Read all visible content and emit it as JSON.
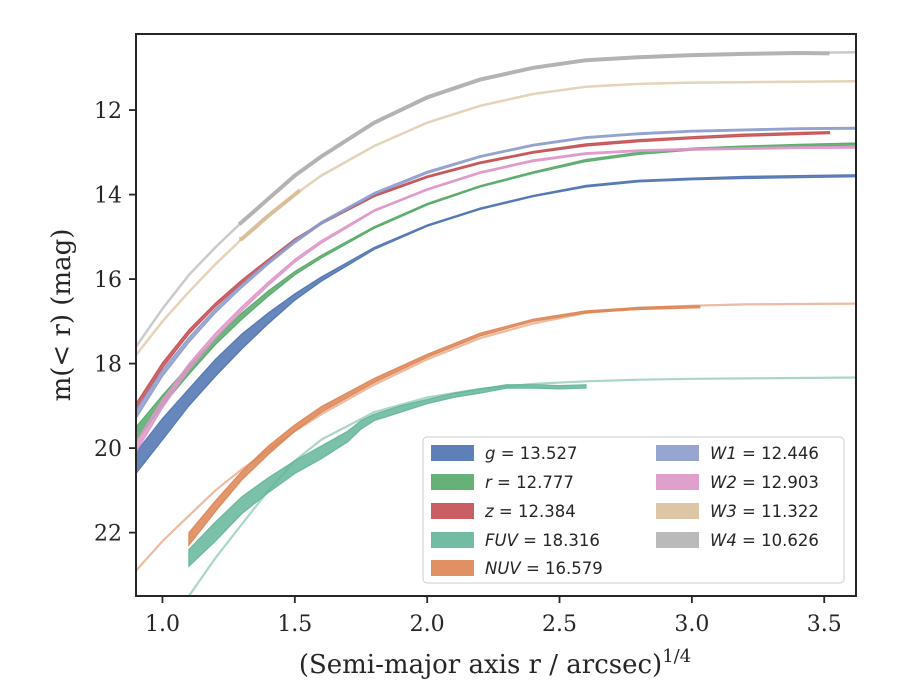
{
  "chart_data": {
    "type": "line",
    "xlabel": "(Semi-major axis r / arcsec)",
    "xlabel_sup": "1/4",
    "ylabel": "m(< r) (mag)",
    "xlim": [
      0.9,
      3.62
    ],
    "ylim": [
      23.5,
      10.2
    ],
    "y_inverted": true,
    "xticks": [
      1.0,
      1.5,
      2.0,
      2.5,
      3.0,
      3.5
    ],
    "xtick_labels": [
      "1.0",
      "1.5",
      "2.0",
      "2.5",
      "3.0",
      "3.5"
    ],
    "yticks": [
      12,
      14,
      16,
      18,
      20,
      22
    ],
    "ytick_labels": [
      "12",
      "14",
      "16",
      "18",
      "20",
      "22"
    ],
    "grid": false,
    "legend_position": "lower-right",
    "series": [
      {
        "name": "g",
        "legend": "g = 13.527",
        "color": "#4c72b0",
        "x": [
          0.9,
          1.0,
          1.1,
          1.2,
          1.3,
          1.4,
          1.5,
          1.6,
          1.8,
          2.0,
          2.2,
          2.4,
          2.6,
          2.8,
          3.0,
          3.2,
          3.4,
          3.62
        ],
        "y": [
          20.6,
          19.8,
          19.0,
          18.3,
          17.65,
          17.05,
          16.5,
          16.05,
          15.3,
          14.75,
          14.35,
          14.05,
          13.82,
          13.7,
          13.65,
          13.62,
          13.6,
          13.58
        ],
        "y_err_low": [
          20.1,
          19.3,
          18.6,
          17.9,
          17.3,
          16.8,
          16.35,
          15.95,
          15.25,
          14.72,
          14.32,
          14.02,
          13.78,
          13.66,
          13.61,
          13.57,
          13.55,
          13.53
        ],
        "widths_obs": [
          0.9,
          3.62
        ]
      },
      {
        "name": "r",
        "legend": "r = 12.777",
        "color": "#55a868",
        "x": [
          0.9,
          1.0,
          1.1,
          1.2,
          1.3,
          1.4,
          1.5,
          1.6,
          1.8,
          2.0,
          2.2,
          2.4,
          2.6,
          2.8,
          3.0,
          3.2,
          3.4,
          3.62
        ],
        "y": [
          19.85,
          19.0,
          18.25,
          17.55,
          16.95,
          16.4,
          15.9,
          15.5,
          14.8,
          14.25,
          13.82,
          13.5,
          13.22,
          13.05,
          12.95,
          12.9,
          12.86,
          12.83
        ],
        "y_err_low": [
          19.5,
          18.75,
          18.05,
          17.4,
          16.8,
          16.28,
          15.82,
          15.44,
          14.76,
          14.21,
          13.79,
          13.46,
          13.17,
          13.0,
          12.9,
          12.85,
          12.81,
          12.78
        ]
      },
      {
        "name": "z",
        "legend": "z = 12.384",
        "color": "#c44e52",
        "x": [
          0.9,
          1.0,
          1.1,
          1.2,
          1.3,
          1.4,
          1.5,
          1.6,
          1.8,
          2.0,
          2.2,
          2.4,
          2.6,
          2.8,
          3.0,
          3.2,
          3.4,
          3.52
        ],
        "y": [
          19.1,
          18.1,
          17.3,
          16.65,
          16.1,
          15.6,
          15.1,
          14.7,
          14.05,
          13.6,
          13.27,
          13.02,
          12.85,
          12.75,
          12.68,
          12.62,
          12.58,
          12.56
        ],
        "y_err_low": [
          18.95,
          17.98,
          17.2,
          16.57,
          16.02,
          15.53,
          15.05,
          14.66,
          14.01,
          13.56,
          13.23,
          12.98,
          12.8,
          12.7,
          12.63,
          12.57,
          12.53,
          12.51
        ]
      },
      {
        "name": "FUV",
        "legend": "FUV = 18.316",
        "color": "#64b59a",
        "x": [
          1.1,
          1.2,
          1.3,
          1.4,
          1.5,
          1.6,
          1.7,
          1.75,
          1.8,
          1.9,
          2.0,
          2.1,
          2.2,
          2.3,
          2.4,
          2.5,
          2.6
        ],
        "y": [
          22.8,
          22.2,
          21.55,
          21.05,
          20.6,
          20.25,
          19.85,
          19.55,
          19.35,
          19.15,
          18.95,
          18.8,
          18.7,
          18.58,
          18.58,
          18.6,
          18.58
        ],
        "y_err_low": [
          22.4,
          21.75,
          21.15,
          20.7,
          20.3,
          19.95,
          19.6,
          19.35,
          19.2,
          19.0,
          18.85,
          18.7,
          18.6,
          18.5,
          18.5,
          18.52,
          18.5
        ],
        "model_x": [
          0.9,
          1.0,
          1.1,
          1.2,
          1.3,
          1.4,
          1.5,
          1.6,
          1.8,
          2.0,
          2.2,
          2.4,
          2.6,
          2.8,
          3.0,
          3.2,
          3.4,
          3.62
        ],
        "model_y": [
          25.2,
          24.4,
          23.5,
          22.6,
          21.8,
          21.0,
          20.3,
          19.8,
          19.15,
          18.8,
          18.6,
          18.48,
          18.42,
          18.38,
          18.36,
          18.35,
          18.34,
          18.33
        ]
      },
      {
        "name": "NUV",
        "legend": "NUV = 16.579",
        "color": "#dd8452",
        "x": [
          1.1,
          1.2,
          1.3,
          1.4,
          1.5,
          1.6,
          1.8,
          2.0,
          2.2,
          2.4,
          2.6,
          2.8,
          3.03
        ],
        "y": [
          22.3,
          21.5,
          20.75,
          20.15,
          19.6,
          19.15,
          18.45,
          17.85,
          17.35,
          17.0,
          16.8,
          16.72,
          16.68
        ],
        "y_err_low": [
          22.0,
          21.25,
          20.55,
          19.95,
          19.45,
          19.02,
          18.35,
          17.78,
          17.28,
          16.95,
          16.75,
          16.67,
          16.63
        ],
        "model_x": [
          0.9,
          1.0,
          1.1,
          1.2,
          1.3,
          1.4,
          1.5,
          1.6,
          1.8,
          2.0,
          2.2,
          2.4,
          2.6,
          2.8,
          3.0,
          3.2,
          3.4,
          3.62
        ],
        "model_y": [
          22.9,
          22.2,
          21.6,
          21.0,
          20.5,
          20.05,
          19.6,
          19.2,
          18.5,
          17.9,
          17.4,
          17.05,
          16.8,
          16.68,
          16.63,
          16.6,
          16.59,
          16.58
        ]
      },
      {
        "name": "W1",
        "legend": "W1 = 12.446",
        "color": "#8c9ccc",
        "x": [
          0.9,
          1.0,
          1.1,
          1.2,
          1.3,
          1.4,
          1.5,
          1.6,
          1.8,
          2.0,
          2.2,
          2.4,
          2.6,
          2.8,
          3.0,
          3.2,
          3.4,
          3.62
        ],
        "y": [
          19.3,
          18.3,
          17.5,
          16.8,
          16.2,
          15.65,
          15.15,
          14.7,
          14.0,
          13.5,
          13.12,
          12.85,
          12.67,
          12.58,
          12.52,
          12.49,
          12.46,
          12.45
        ],
        "y_err_low": [
          19.1,
          18.15,
          17.38,
          16.7,
          16.12,
          15.58,
          15.08,
          14.64,
          13.95,
          13.45,
          13.08,
          12.81,
          12.63,
          12.54,
          12.48,
          12.45,
          12.42,
          12.41
        ]
      },
      {
        "name": "W2",
        "legend": "W2 = 12.903",
        "color": "#dd96c8",
        "x": [
          0.9,
          1.0,
          1.1,
          1.2,
          1.3,
          1.4,
          1.5,
          1.6,
          1.8,
          2.0,
          2.2,
          2.4,
          2.6,
          2.8,
          3.0,
          3.2,
          3.4,
          3.62
        ],
        "y": [
          20.1,
          19.05,
          18.15,
          17.4,
          16.75,
          16.15,
          15.6,
          15.15,
          14.4,
          13.9,
          13.5,
          13.22,
          13.05,
          12.98,
          12.95,
          12.93,
          12.91,
          12.9
        ],
        "y_err_low": [
          19.85,
          18.85,
          18.0,
          17.28,
          16.65,
          16.07,
          15.53,
          15.09,
          14.36,
          13.86,
          13.46,
          13.18,
          13.01,
          12.94,
          12.91,
          12.89,
          12.87,
          12.86
        ]
      },
      {
        "name": "W3",
        "legend": "W3 = 11.322",
        "color": "#d9c09a",
        "x": [
          0.9,
          1.0,
          1.1,
          1.2,
          1.3,
          1.4,
          1.5,
          1.6,
          1.8,
          2.0,
          2.2,
          2.4,
          2.6,
          2.8,
          3.0,
          3.2,
          3.4,
          3.62
        ],
        "y": [
          17.8,
          17.0,
          16.3,
          15.65,
          15.05,
          14.5,
          14.0,
          13.55,
          12.85,
          12.3,
          11.9,
          11.62,
          11.45,
          11.38,
          11.35,
          11.34,
          11.33,
          11.32
        ],
        "thick_x": [
          1.29,
          1.52
        ],
        "thick_y": [
          15.05,
          13.9
        ]
      },
      {
        "name": "W4",
        "legend": "W4 = 10.626",
        "color": "#b3b3b3",
        "x": [
          0.9,
          1.0,
          1.1,
          1.2,
          1.3,
          1.4,
          1.5,
          1.6,
          1.8,
          2.0,
          2.2,
          2.4,
          2.6,
          2.8,
          3.0,
          3.2,
          3.4,
          3.62
        ],
        "y": [
          17.6,
          16.7,
          15.9,
          15.25,
          14.65,
          14.1,
          13.55,
          13.1,
          12.3,
          11.7,
          11.28,
          11.0,
          10.82,
          10.75,
          10.7,
          10.67,
          10.65,
          10.63
        ],
        "thick_x": [
          1.29,
          3.52
        ],
        "thick_y": [
          14.7,
          10.66
        ]
      }
    ]
  }
}
